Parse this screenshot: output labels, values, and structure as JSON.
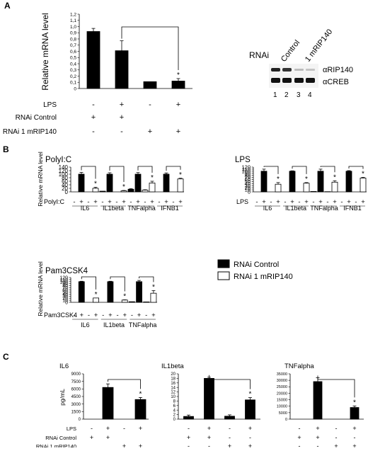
{
  "panel_labels": {
    "A": "A",
    "B": "B",
    "C": "C"
  },
  "blot": {
    "rnai_label": "RNAi",
    "col_labels": [
      "Control",
      "1 mRIP140"
    ],
    "lane_numbers": [
      "1",
      "2",
      "3",
      "4"
    ],
    "bands": [
      "αRIP140",
      "αCREB"
    ]
  },
  "legend": {
    "items": [
      {
        "label": "RNAi Control",
        "fill": "#000000"
      },
      {
        "label": "RNAi 1 mRIP140",
        "fill": "#ffffff"
      }
    ]
  },
  "colors": {
    "ink": "#000000",
    "control": "#000000",
    "knockdown": "#ffffff"
  },
  "chart_data": [
    {
      "id": "A",
      "type": "bar",
      "title": "",
      "ylabel": "Relative mRNA level",
      "ylim": [
        0,
        1.2
      ],
      "yticks": [
        "0",
        "0,1",
        "0,2",
        "0,3",
        "0,4",
        "0,5",
        "0,6",
        "0,7",
        "0,8",
        "0,9",
        "1,0",
        "1,1",
        "1,2"
      ],
      "bars": [
        {
          "value": 0.92,
          "err": 0.05,
          "fill": "control",
          "star": false
        },
        {
          "value": 0.61,
          "err": 0.16,
          "fill": "control",
          "star": false
        },
        {
          "value": 0.11,
          "err": 0.0,
          "fill": "control",
          "star": false
        },
        {
          "value": 0.12,
          "err": 0.04,
          "fill": "control",
          "star": true
        }
      ],
      "brackets": [
        [
          1,
          3
        ]
      ],
      "rows": [
        {
          "label": "LPS",
          "cells": [
            "-",
            "+",
            "-",
            "+"
          ]
        },
        {
          "label": "RNAi Control",
          "cells": [
            "+",
            "+",
            "",
            ""
          ]
        },
        {
          "label": "RNAi 1 mRIP140",
          "cells": [
            "-",
            "-",
            "+",
            "+"
          ]
        }
      ]
    },
    {
      "id": "B1",
      "type": "bar",
      "title": "PolyI:C",
      "ylabel": "Relative mRNA level",
      "ylim": [
        0,
        140
      ],
      "yticks": [
        "0",
        "20",
        "40",
        "60",
        "80",
        "100",
        "120",
        "140"
      ],
      "groups": [
        "IL6",
        "IL1beta",
        "TNFalpha",
        "IFNB1"
      ],
      "bars": [
        {
          "value": 0,
          "err": 0,
          "fill": "control",
          "star": false
        },
        {
          "value": 100,
          "err": 10,
          "fill": "control",
          "star": false
        },
        {
          "value": 0,
          "err": 0,
          "fill": "knockdown",
          "star": false
        },
        {
          "value": 20,
          "err": 6,
          "fill": "knockdown",
          "star": true
        },
        {
          "value": 4,
          "err": 0,
          "fill": "control",
          "star": false
        },
        {
          "value": 100,
          "err": 8,
          "fill": "control",
          "star": false
        },
        {
          "value": 0,
          "err": 0,
          "fill": "knockdown",
          "star": false
        },
        {
          "value": 6,
          "err": 2,
          "fill": "knockdown",
          "star": true
        },
        {
          "value": 15,
          "err": 3,
          "fill": "control",
          "star": false
        },
        {
          "value": 100,
          "err": 9,
          "fill": "control",
          "star": false
        },
        {
          "value": 10,
          "err": 2,
          "fill": "knockdown",
          "star": false
        },
        {
          "value": 50,
          "err": 10,
          "fill": "knockdown",
          "star": true
        },
        {
          "value": 0,
          "err": 0,
          "fill": "control",
          "star": false
        },
        {
          "value": 100,
          "err": 7,
          "fill": "control",
          "star": false
        },
        {
          "value": 0,
          "err": 0,
          "fill": "knockdown",
          "star": false
        },
        {
          "value": 73,
          "err": 4,
          "fill": "knockdown",
          "star": true
        }
      ],
      "brackets": [
        [
          1,
          3
        ],
        [
          5,
          7
        ],
        [
          9,
          11
        ],
        [
          13,
          15
        ]
      ],
      "treatment": {
        "label": "PolyI:C",
        "cells": [
          "-",
          "+",
          "-",
          "+",
          "-",
          "+",
          "-",
          "+",
          "-",
          "+",
          "-",
          "+",
          "-",
          "+",
          "-",
          "+"
        ]
      }
    },
    {
      "id": "B2",
      "type": "bar",
      "title": "LPS",
      "ylabel": "",
      "ylim": [
        0,
        120
      ],
      "yticks": [
        "0",
        "10",
        "20",
        "30",
        "40",
        "50",
        "60",
        "70",
        "80",
        "90",
        "100",
        "110",
        "120"
      ],
      "groups": [
        "IL6",
        "IL1beta",
        "TNFalpha",
        "IFNB1"
      ],
      "bars": [
        {
          "value": 0,
          "err": 0,
          "fill": "control",
          "star": false
        },
        {
          "value": 100,
          "err": 10,
          "fill": "control",
          "star": false
        },
        {
          "value": 0,
          "err": 0,
          "fill": "knockdown",
          "star": false
        },
        {
          "value": 37,
          "err": 8,
          "fill": "knockdown",
          "star": true
        },
        {
          "value": 0,
          "err": 0,
          "fill": "control",
          "star": false
        },
        {
          "value": 100,
          "err": 2,
          "fill": "control",
          "star": false
        },
        {
          "value": 0,
          "err": 0,
          "fill": "knockdown",
          "star": false
        },
        {
          "value": 42,
          "err": 3,
          "fill": "knockdown",
          "star": true
        },
        {
          "value": 2,
          "err": 0,
          "fill": "control",
          "star": false
        },
        {
          "value": 100,
          "err": 10,
          "fill": "control",
          "star": false
        },
        {
          "value": 1,
          "err": 0,
          "fill": "knockdown",
          "star": false
        },
        {
          "value": 47,
          "err": 7,
          "fill": "knockdown",
          "star": true
        },
        {
          "value": 0,
          "err": 0,
          "fill": "control",
          "star": false
        },
        {
          "value": 100,
          "err": 3,
          "fill": "control",
          "star": false
        },
        {
          "value": 0,
          "err": 0,
          "fill": "knockdown",
          "star": false
        },
        {
          "value": 67,
          "err": 3,
          "fill": "knockdown",
          "star": true
        }
      ],
      "brackets": [
        [
          1,
          3
        ],
        [
          5,
          7
        ],
        [
          9,
          11
        ],
        [
          13,
          15
        ]
      ],
      "treatment": {
        "label": "LPS",
        "cells": [
          "-",
          "+",
          "-",
          "+",
          "-",
          "+",
          "-",
          "+",
          "-",
          "+",
          "-",
          "+",
          "-",
          "+",
          "-",
          "+"
        ]
      }
    },
    {
      "id": "B3",
      "type": "bar",
      "title": "Pam3CSK4",
      "ylabel": "Relative mRNA level",
      "ylim": [
        0,
        120
      ],
      "yticks": [
        "0",
        "10",
        "20",
        "30",
        "40",
        "50",
        "60",
        "70",
        "80",
        "90",
        "100",
        "110",
        "120"
      ],
      "groups": [
        "IL6",
        "IL1beta",
        "TNFalpha"
      ],
      "bars": [
        {
          "value": 0,
          "err": 0,
          "fill": "control",
          "star": false
        },
        {
          "value": 100,
          "err": 2,
          "fill": "control",
          "star": false
        },
        {
          "value": 0,
          "err": 0,
          "fill": "knockdown",
          "star": false
        },
        {
          "value": 21,
          "err": 0,
          "fill": "knockdown",
          "star": true
        },
        {
          "value": 0,
          "err": 0,
          "fill": "control",
          "star": false
        },
        {
          "value": 100,
          "err": 2,
          "fill": "control",
          "star": false
        },
        {
          "value": 0,
          "err": 0,
          "fill": "knockdown",
          "star": false
        },
        {
          "value": 11,
          "err": 1,
          "fill": "knockdown",
          "star": true
        },
        {
          "value": 3,
          "err": 0,
          "fill": "control",
          "star": false
        },
        {
          "value": 100,
          "err": 6,
          "fill": "control",
          "star": false
        },
        {
          "value": 2,
          "err": 0,
          "fill": "knockdown",
          "star": false
        },
        {
          "value": 44,
          "err": 13,
          "fill": "knockdown",
          "star": true
        }
      ],
      "brackets": [
        [
          1,
          3
        ],
        [
          5,
          7
        ],
        [
          9,
          11
        ]
      ],
      "treatment": {
        "label": "Pam3CSK4",
        "cells": [
          "-",
          "+",
          "-",
          "+",
          "-",
          "+",
          "-",
          "+",
          "-",
          "+",
          "-",
          "+"
        ]
      }
    },
    {
      "id": "C1",
      "type": "bar",
      "title": "IL6",
      "ylabel": "pg/mL",
      "ylim": [
        0,
        9000
      ],
      "yticks": [
        "0",
        "1500",
        "3000",
        "4500",
        "6000",
        "7500",
        "9000"
      ],
      "bars": [
        {
          "value": 0,
          "err": 0,
          "fill": "control",
          "star": false
        },
        {
          "value": 6300,
          "err": 700,
          "fill": "control",
          "star": false
        },
        {
          "value": 0,
          "err": 0,
          "fill": "control",
          "star": false
        },
        {
          "value": 3900,
          "err": 400,
          "fill": "control",
          "star": true
        }
      ],
      "brackets": [
        [
          1,
          3
        ]
      ],
      "rows": [
        {
          "label": "LPS",
          "cells": [
            "-",
            "+",
            "-",
            "+"
          ]
        },
        {
          "label": "RNAi Control",
          "cells": [
            "+",
            "+",
            "",
            ""
          ]
        },
        {
          "label": "RNAi 1 mRIP140",
          "cells": [
            "",
            "",
            "+",
            "+"
          ]
        }
      ]
    },
    {
      "id": "C2",
      "type": "bar",
      "title": "IL1beta",
      "ylabel": "",
      "ylim": [
        0,
        20
      ],
      "yticks": [
        "0",
        "2",
        "4",
        "6",
        "8",
        "10",
        "12",
        "14",
        "16",
        "18",
        "20"
      ],
      "bars": [
        {
          "value": 1.2,
          "err": 0.6,
          "fill": "control",
          "star": false
        },
        {
          "value": 18,
          "err": 0.5,
          "fill": "control",
          "star": false
        },
        {
          "value": 1.3,
          "err": 0.6,
          "fill": "control",
          "star": false
        },
        {
          "value": 8.5,
          "err": 1.0,
          "fill": "control",
          "star": true
        }
      ],
      "brackets": [
        [
          1,
          3
        ]
      ],
      "rows": [
        {
          "label": "",
          "cells": [
            "-",
            "+",
            "-",
            "+"
          ]
        },
        {
          "label": "",
          "cells": [
            "+",
            "+",
            "-",
            "-"
          ]
        },
        {
          "label": "",
          "cells": [
            "-",
            "-",
            "+",
            "+"
          ]
        }
      ]
    },
    {
      "id": "C3",
      "type": "bar",
      "title": "TNFalpha",
      "ylabel": "",
      "ylim": [
        0,
        35000
      ],
      "yticks": [
        "0",
        "5000",
        "10000",
        "15000",
        "20000",
        "25000",
        "30000",
        "35000"
      ],
      "bars": [
        {
          "value": 0,
          "err": 0,
          "fill": "control",
          "star": false
        },
        {
          "value": 29000,
          "err": 3000,
          "fill": "control",
          "star": false
        },
        {
          "value": 0,
          "err": 0,
          "fill": "control",
          "star": false
        },
        {
          "value": 9000,
          "err": 1200,
          "fill": "control",
          "star": true
        }
      ],
      "brackets": [
        [
          1,
          3
        ]
      ],
      "rows": [
        {
          "label": "",
          "cells": [
            "-",
            "+",
            "-",
            "+"
          ]
        },
        {
          "label": "",
          "cells": [
            "+",
            "+",
            "-",
            "-"
          ]
        },
        {
          "label": "",
          "cells": [
            "-",
            "-",
            "+",
            "+"
          ]
        }
      ]
    }
  ]
}
